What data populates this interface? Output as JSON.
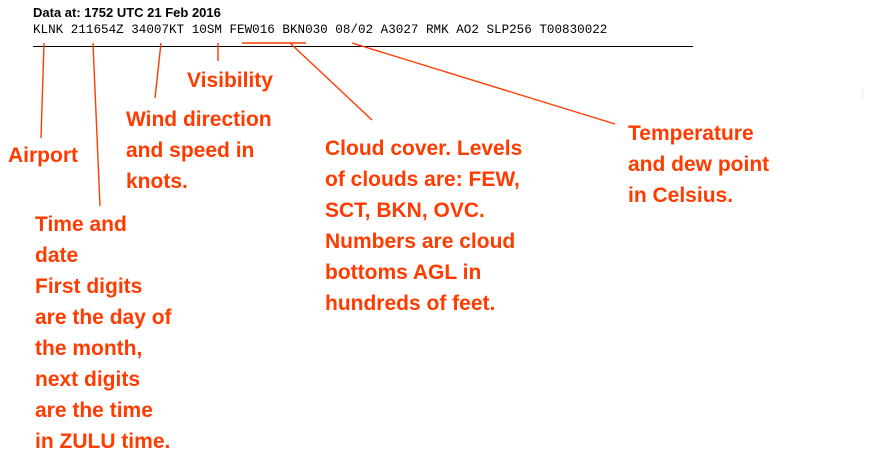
{
  "header": {
    "data_at": "Data at: 1752 UTC 21 Feb 2016"
  },
  "metar": {
    "text": "KLNK 211654Z 34007KT 10SM FEW016 BKN030 08/02 A3027 RMK AO2 SLP256 T00830022"
  },
  "colors": {
    "annotation": "#ff3b00",
    "text": "#000000"
  },
  "annotations": {
    "airport": [
      "Airport"
    ],
    "time_date": [
      "Time and",
      "date",
      "First digits",
      "are the day of",
      "the month,",
      "next digits",
      "are the time",
      "in ZULU time."
    ],
    "visibility": [
      "Visibility"
    ],
    "wind": [
      "Wind direction",
      "and speed in",
      "knots."
    ],
    "cloud": [
      "Cloud cover. Levels",
      "of clouds are: FEW,",
      "SCT, BKN, OVC.",
      "Numbers are cloud",
      "bottoms AGL in",
      "hundreds of feet."
    ],
    "temperature": [
      "Temperature",
      "and dew point",
      "in Celsius."
    ]
  }
}
